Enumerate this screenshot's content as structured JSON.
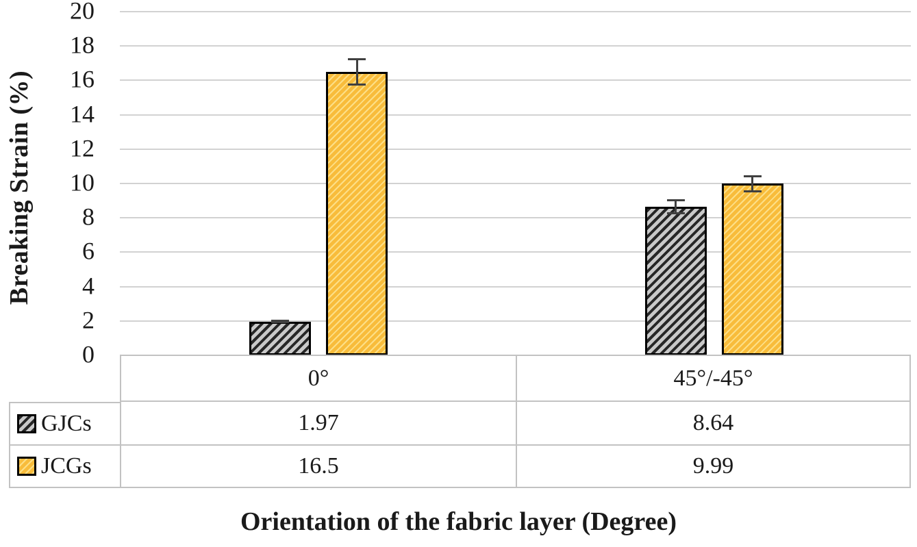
{
  "chart_data": {
    "type": "bar",
    "title": "",
    "xlabel": "Orientation of the fabric layer (Degree)",
    "ylabel": "Breaking Strain (%)",
    "categories": [
      "0°",
      "45°/-45°"
    ],
    "series": [
      {
        "name": "GJCs",
        "values": [
          1.97,
          8.64
        ],
        "error_bars": [
          0.1,
          0.45
        ],
        "fill": "#C9C9C9",
        "hatch": "black diagonal stripes",
        "border_color": "#000000"
      },
      {
        "name": "JCGs",
        "values": [
          16.5,
          9.99
        ],
        "error_bars": [
          0.8,
          0.5
        ],
        "fill": "#F8BC3B",
        "hatch": "light diagonal stripes",
        "border_color": "#000000"
      }
    ],
    "ylim": [
      0,
      20
    ],
    "yticks": [
      0,
      2,
      4,
      6,
      8,
      10,
      12,
      14,
      16,
      18,
      20
    ],
    "grid": "horizontal",
    "gridline_color": "#D2D2D2",
    "error_bar_color": "#404040",
    "legend_position": "table rows below chart"
  },
  "data_table": {
    "category_row": [
      "0°",
      "45°/-45°"
    ],
    "rows": [
      {
        "label": "GJCs",
        "values": [
          "1.97",
          "8.64"
        ]
      },
      {
        "label": "JCGs",
        "values": [
          "16.5",
          "9.99"
        ]
      }
    ]
  }
}
